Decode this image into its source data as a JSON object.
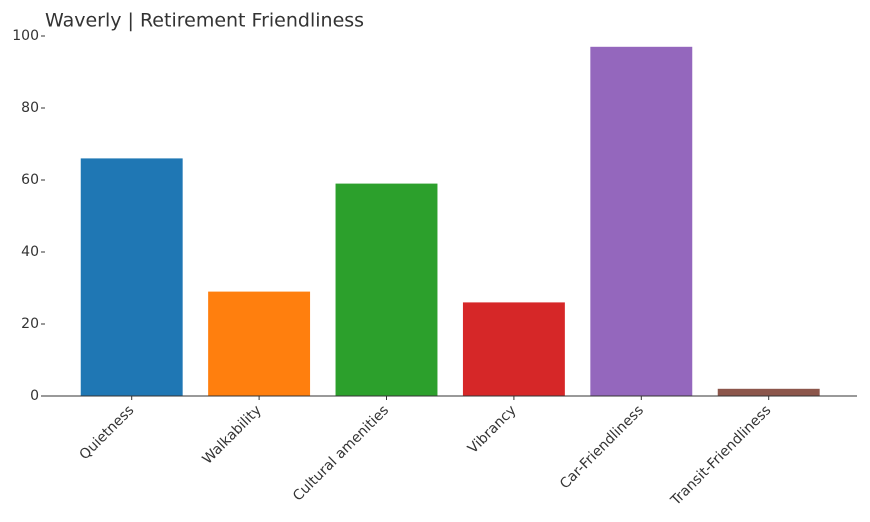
{
  "chart_data": {
    "type": "bar",
    "title": "Waverly | Retirement Friendliness",
    "categories": [
      "Quietness",
      "Walkability",
      "Cultural amenities",
      "Vibrancy",
      "Car-Friendliness",
      "Transit-Friendliness"
    ],
    "values": [
      66,
      29,
      59,
      26,
      97,
      2
    ],
    "colors": [
      "#1f77b4",
      "#ff7f0e",
      "#2ca02c",
      "#d62728",
      "#9467bd",
      "#8c564b"
    ],
    "ylim": [
      0,
      100
    ],
    "yticks": [
      0,
      20,
      40,
      60,
      80,
      100
    ]
  }
}
